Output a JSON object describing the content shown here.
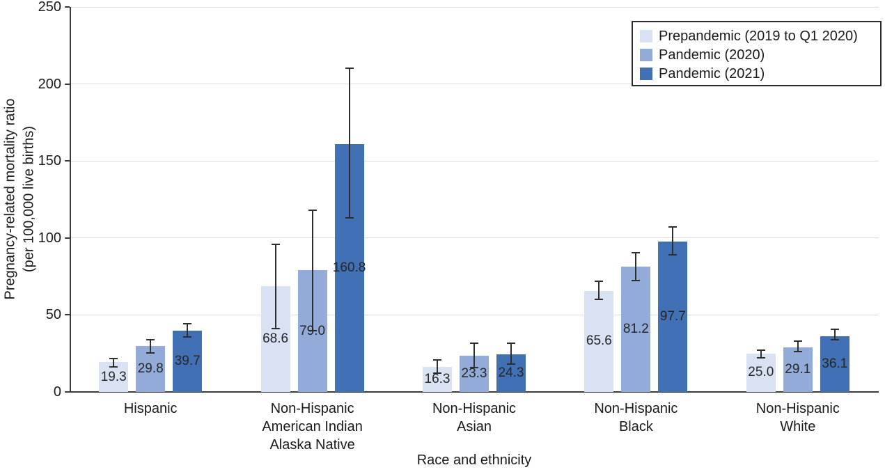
{
  "figure": {
    "background": "#ffffff",
    "axis_color": "#3c3c3c",
    "gridline_color": "#dcdcdc",
    "error_bar_color": "#2e2e2e",
    "text_color": "#1a1a1a"
  },
  "chart_data": {
    "type": "bar",
    "title": "",
    "xlabel": "Race and ethnicity",
    "ylabel": "Pregnancy-related mortality ratio (per 100,000 live births)",
    "ylabel_lines": [
      "Pregnancy-related mortality ratio",
      "(per 100,000 live births)"
    ],
    "ylim": [
      0,
      250
    ],
    "yticks": [
      0,
      50,
      100,
      150,
      200,
      250
    ],
    "grid": true,
    "legend_position": "top-right",
    "error_bars": true,
    "categories": [
      "Hispanic",
      "Non-Hispanic American Indian Alaska Native",
      "Non-Hispanic Asian",
      "Non-Hispanic Black",
      "Non-Hispanic White"
    ],
    "category_lines": [
      [
        "Hispanic"
      ],
      [
        "Non-Hispanic",
        "American Indian",
        "Alaska Native"
      ],
      [
        "Non-Hispanic",
        "Asian"
      ],
      [
        "Non-Hispanic",
        "Black"
      ],
      [
        "Non-Hispanic",
        "White"
      ]
    ],
    "series": [
      {
        "name": "Prepandemic (2019 to Q1 2020)",
        "color": "#d9e2f2",
        "values": [
          19.3,
          68.6,
          16.3,
          65.6,
          25.0
        ],
        "labels": [
          "19.3",
          "68.6",
          "16.3",
          "65.6",
          "25.0"
        ],
        "ci_low": [
          16.5,
          41.0,
          12.0,
          60.0,
          22.0
        ],
        "ci_high": [
          21.5,
          96.0,
          21.0,
          72.0,
          27.0
        ]
      },
      {
        "name": "Pandemic (2020)",
        "color": "#93abd9",
        "values": [
          29.8,
          79.0,
          23.3,
          81.2,
          29.1
        ],
        "labels": [
          "29.8",
          "79.0",
          "23.3",
          "81.2",
          "29.1"
        ],
        "ci_low": [
          25.5,
          40.0,
          16.0,
          72.5,
          26.0
        ],
        "ci_high": [
          34.0,
          118.0,
          31.5,
          90.5,
          33.0
        ]
      },
      {
        "name": "Pandemic (2021)",
        "color": "#4270b4",
        "values": [
          39.7,
          160.8,
          24.3,
          97.7,
          36.1
        ],
        "labels": [
          "39.7",
          "160.8",
          "24.3",
          "97.7",
          "36.1"
        ],
        "ci_low": [
          35.5,
          113.0,
          18.0,
          89.0,
          34.0
        ],
        "ci_high": [
          44.5,
          210.0,
          31.5,
          107.0,
          40.5
        ]
      }
    ]
  }
}
